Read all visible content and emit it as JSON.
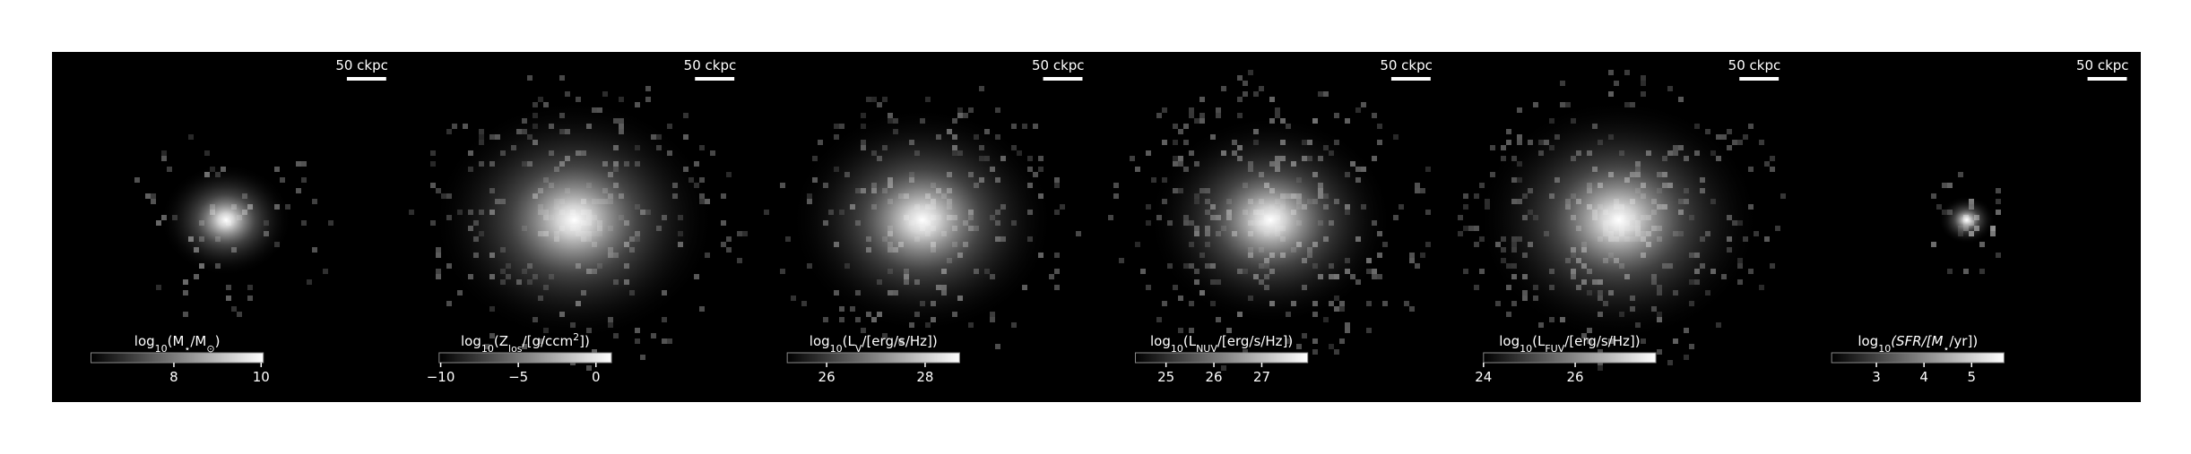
{
  "panels": [
    {
      "scale_label": "50 ckpc",
      "colorbar": {
        "label": [
          {
            "text": "log"
          },
          {
            "text": "10",
            "sub": true
          },
          {
            "text": "(M"
          },
          {
            "text": "⋆",
            "sub": true
          },
          {
            "text": "/M"
          },
          {
            "text": "⊙",
            "sub": true
          },
          {
            "text": ")"
          }
        ],
        "lim": [
          6.1,
          10.05
        ],
        "ticks": [
          8,
          10
        ]
      }
    },
    {
      "scale_label": "50 ckpc",
      "colorbar": {
        "label": [
          {
            "text": "log"
          },
          {
            "text": "10",
            "sub": true
          },
          {
            "text": "(Z"
          },
          {
            "text": "los",
            "sub": true
          },
          {
            "text": "/[g/ccm"
          },
          {
            "text": "2",
            "sup": true
          },
          {
            "text": "])"
          }
        ],
        "lim": [
          -10.1,
          1
        ],
        "ticks": [
          {
            "value": -10,
            "label": "−10"
          },
          {
            "value": -5,
            "label": "−5"
          },
          0
        ]
      }
    },
    {
      "scale_label": "50 ckpc",
      "colorbar": {
        "label": [
          {
            "text": "log"
          },
          {
            "text": "10",
            "sub": true
          },
          {
            "text": "(L"
          },
          {
            "text": "V",
            "sub": true
          },
          {
            "text": "/[erg/s/Hz])"
          }
        ],
        "lim": [
          25.2,
          28.7
        ],
        "ticks": [
          26,
          28
        ]
      }
    },
    {
      "scale_label": "50 ckpc",
      "colorbar": {
        "label": [
          {
            "text": "log"
          },
          {
            "text": "10",
            "sub": true
          },
          {
            "text": "(L"
          },
          {
            "text": "NUV",
            "sub": true
          },
          {
            "text": "/[erg/s/Hz])"
          }
        ],
        "lim": [
          24.36,
          27.96
        ],
        "ticks": [
          25,
          26,
          27
        ]
      }
    },
    {
      "scale_label": "50 ckpc",
      "colorbar": {
        "label": [
          {
            "text": "log"
          },
          {
            "text": "10",
            "sub": true
          },
          {
            "text": "(L"
          },
          {
            "text": "FUV",
            "sub": true
          },
          {
            "text": "/[erg/s/Hz])"
          }
        ],
        "lim": [
          24,
          27.76
        ],
        "ticks": [
          24,
          26
        ]
      }
    },
    {
      "scale_label": "50 ckpc",
      "colorbar": {
        "label": [
          {
            "text": "log"
          },
          {
            "text": "10",
            "sub": true
          },
          {
            "text": "(SFR/[M"
          },
          {
            "text": "⋆",
            "sub": true
          },
          {
            "text": "/yr])"
          }
        ],
        "lim": [
          2.06,
          5.68
        ],
        "ticks": [
          3,
          4,
          5
        ]
      }
    }
  ]
}
